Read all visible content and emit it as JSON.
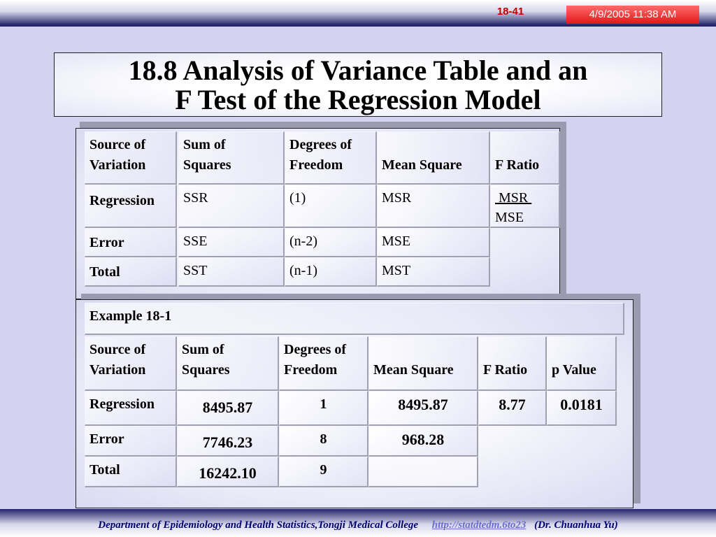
{
  "header": {
    "slide_number": "18-41",
    "date_time": "4/9/2005 11:38 AM"
  },
  "title": {
    "line1": "18.8  Analysis of Variance Table and an",
    "line2": "F Test of the Regression Model"
  },
  "anova_table": {
    "headers": {
      "source": [
        "Source of",
        "Variation"
      ],
      "ss": [
        "Sum of",
        "Squares"
      ],
      "df": [
        "Degrees of",
        "Freedom"
      ],
      "ms": "Mean Square",
      "f": "F Ratio"
    },
    "rows": [
      {
        "source": "Regression",
        "ss": "SSR",
        "df": "(1)",
        "ms": "MSR"
      },
      {
        "source": "Error",
        "ss": "SSE",
        "df": "(n-2)",
        "ms": "MSE"
      },
      {
        "source": "Total",
        "ss": "SST",
        "df": "(n-1)",
        "ms": "MST"
      }
    ],
    "f_ratio": {
      "numerator": " MSR ",
      "denominator": "MSE"
    }
  },
  "example_table": {
    "caption": "Example 18-1",
    "headers": {
      "source": [
        "Source of",
        "Variation"
      ],
      "ss": [
        "Sum of",
        "Squares"
      ],
      "df": [
        "Degrees of",
        "Freedom"
      ],
      "ms": "Mean Square",
      "f": "F Ratio",
      "p": "p Value"
    },
    "rows": [
      {
        "source": "Regression",
        "ss": "8495.87",
        "df": "1",
        "ms": "8495.87",
        "f": "8.77",
        "p": "0.0181"
      },
      {
        "source": "Error",
        "ss": "7746.23",
        "df": "8",
        "ms": "968.28"
      },
      {
        "source": "Total",
        "ss": "16242.10",
        "df": "9",
        "ms": ""
      }
    ]
  },
  "footer": {
    "department": "Department of Epidemiology and Health Statistics,Tongji Medical College",
    "link": "http://statdtedm.6to23",
    "author": "(Dr. Chuanhua Yu)"
  }
}
